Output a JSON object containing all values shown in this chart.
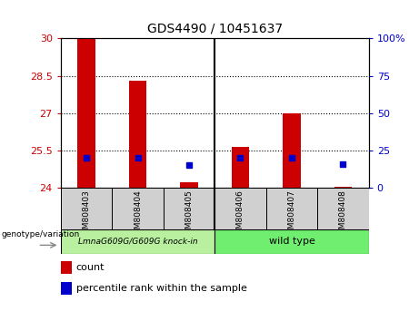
{
  "title": "GDS4490 / 10451637",
  "samples": [
    "GSM808403",
    "GSM808404",
    "GSM808405",
    "GSM808406",
    "GSM808407",
    "GSM808408"
  ],
  "count_values": [
    30.0,
    28.3,
    24.22,
    25.65,
    27.0,
    24.03
  ],
  "count_base": 24.0,
  "percentile_right_axis": [
    20,
    20,
    15,
    20,
    20,
    16
  ],
  "ylim_left": [
    24.0,
    30.0
  ],
  "ylim_right": [
    0,
    100
  ],
  "yticks_left": [
    24,
    25.5,
    27,
    28.5,
    30
  ],
  "yticks_right": [
    0,
    25,
    50,
    75,
    100
  ],
  "ytick_labels_left": [
    "24",
    "25.5",
    "27",
    "28.5",
    "30"
  ],
  "ytick_labels_right": [
    "0",
    "25",
    "50",
    "75",
    "100%"
  ],
  "bar_color": "#cc0000",
  "percentile_color": "#0000cc",
  "bar_width": 0.35,
  "left_tick_color": "#cc0000",
  "right_tick_color": "#0000cc",
  "legend_count_label": "count",
  "legend_percentile_label": "percentile rank within the sample",
  "genotype_label": "genotype/variation",
  "group1_label": "LmnaG609G/G609G knock-in",
  "group2_label": "wild type",
  "group1_color": "#b8f0a0",
  "group2_color": "#70ee70",
  "xtick_bg_color": "#d0d0d0",
  "n_group1": 3,
  "n_group2": 3
}
